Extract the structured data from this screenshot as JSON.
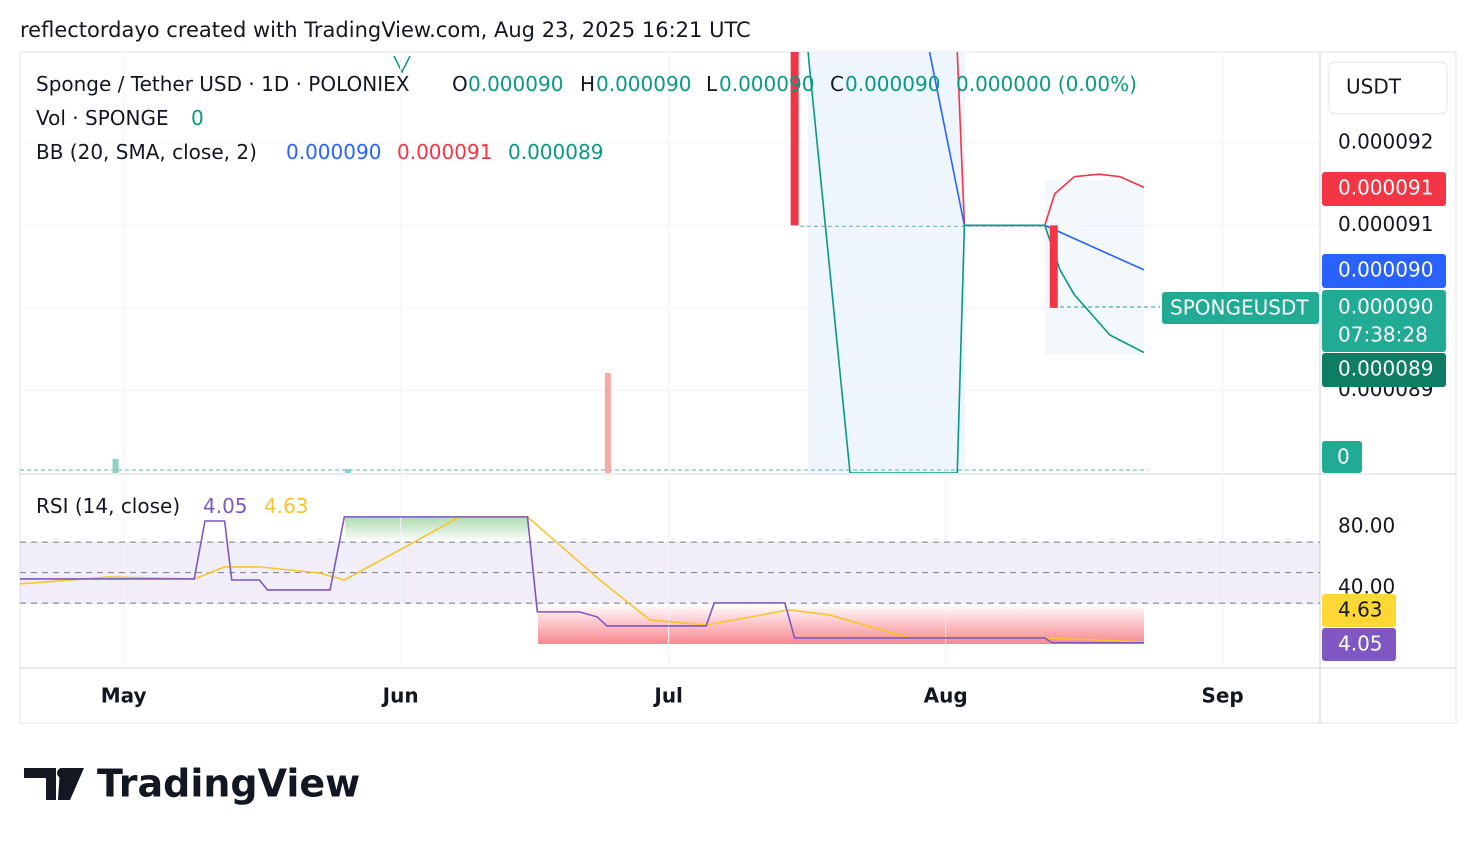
{
  "header": {
    "text": "reflectordayo created with TradingView.com, Aug 23, 2025 16:21 UTC"
  },
  "legend": {
    "symbol": "Sponge / Tether USD · 1D · POLONIEX",
    "o_label": "O",
    "o": "0.000090",
    "h_label": "H",
    "h": "0.000090",
    "l_label": "L",
    "l": "0.000090",
    "c_label": "C",
    "c": "0.000090",
    "change": "0.000000 (0.00%)",
    "vol": "Vol · SPONGE",
    "vol_value": "0",
    "bb": "BB (20, SMA, close, 2)",
    "bb_basis": "0.000090",
    "bb_upper": "0.000091",
    "bb_lower": "0.000089"
  },
  "x_axis": {
    "xlim": [
      109.4,
      254.9
    ],
    "xticks": [
      {
        "value": 121,
        "label": "May"
      },
      {
        "value": 152,
        "label": "Jun"
      },
      {
        "value": 182,
        "label": "Jul"
      },
      {
        "value": 213,
        "label": "Aug"
      },
      {
        "value": 244,
        "label": "Sep"
      }
    ]
  },
  "price_pane": {
    "unit": "USDT",
    "ylim": [
      8.8e-05,
      9.31e-05
    ],
    "yticks": [
      9.2e-05,
      9.1e-05,
      {
        "value": 9e-05,
        "label": "0.000090"
      },
      8.9e-05
    ],
    "grid": true,
    "candles": {
      "color": "#f23645",
      "x": [
        196.1,
        225.1
      ],
      "open": [
        9.35e-05,
        9.1e-05
      ],
      "close": [
        9.1e-05,
        9e-05
      ]
    },
    "bb": [
      {
        "name": "upper",
        "color": "#f23645",
        "x": [
          214.3,
          215.1,
          224.1,
          225.2,
          227.4,
          230.2,
          232.5,
          235.2
        ],
        "values": [
          9.31e-05,
          9.1e-05,
          9.1e-05,
          9.138e-05,
          9.159e-05,
          9.162e-05,
          9.159e-05,
          9.146e-05
        ]
      },
      {
        "name": "basis",
        "color": "#2962ff",
        "x": [
          211.2,
          215.1,
          224.1,
          235.2
        ],
        "values": [
          9.31e-05,
          9.1e-05,
          9.1e-05,
          9.046e-05
        ]
      },
      {
        "name": "lower",
        "color": "#089981",
        "x": [
          197.6,
          202.3,
          214.3,
          215.1,
          224.1,
          225.8,
          227.4,
          231.4,
          235.2
        ],
        "values": [
          9.31e-05,
          8.8e-05,
          8.8e-05,
          9.1e-05,
          9.1e-05,
          9.046e-05,
          9.016e-05,
          8.967e-05,
          8.946e-05
        ]
      }
    ],
    "volume": {
      "ylim": [
        0,
        100
      ],
      "x": [
        120.1,
        146.1,
        175.2
      ],
      "values": [
        14,
        4,
        100
      ],
      "colors": [
        "#8fd1c6",
        "#8fd1c6",
        "#f7a9a7"
      ]
    },
    "pills": {
      "upper": "0.000091",
      "basis": "0.000090",
      "symbol": "SPONGEUSDT",
      "last": "0.000090",
      "countdown": "07:38:28",
      "lower": "0.000089",
      "volume": "0"
    }
  },
  "rsi_pane": {
    "legend": "RSI (14, close)",
    "rsi_value": "4.05",
    "ma_value": "4.63",
    "ylim": [
      -12.5,
      113.4
    ],
    "yticks": [
      {
        "value": 80,
        "label": "80.00"
      },
      {
        "value": 40,
        "label": "40.00"
      }
    ],
    "bands": [
      30,
      50,
      70
    ],
    "series": [
      {
        "name": "RSI",
        "color": "#7e57c2",
        "x": [
          109.4,
          128.9,
          130.1,
          132.3,
          133.1,
          136.2,
          137.1,
          144.1,
          145.7,
          166.2,
          167.3,
          172.0,
          174.0,
          175.1,
          186.2,
          187.1,
          195.0,
          196.1,
          224.1,
          224.9,
          235.2
        ],
        "values": [
          45.9,
          45.9,
          83.9,
          83.9,
          45.2,
          45.2,
          38.7,
          38.7,
          86.6,
          86.6,
          24.3,
          24.3,
          21.0,
          15.1,
          15.1,
          30.2,
          30.2,
          7.2,
          7.2,
          4.05,
          4.05
        ]
      },
      {
        "name": "RSI-based MA",
        "color": "#f7c52b",
        "x": [
          109.4,
          119.4,
          128.9,
          132.3,
          136.2,
          142.9,
          145.7,
          151.9,
          158.6,
          166.2,
          169.8,
          174.3,
          179.9,
          186.2,
          195.5,
          200.0,
          209.0,
          224.1,
          235.2
        ],
        "values": [
          42.6,
          47.2,
          45.9,
          53.8,
          53.8,
          49.8,
          45.2,
          64.9,
          86.6,
          86.6,
          68.2,
          45.2,
          19.0,
          15.7,
          25.6,
          22.3,
          7.2,
          7.2,
          4.63
        ]
      }
    ]
  },
  "brand": {
    "name": "TradingView"
  }
}
